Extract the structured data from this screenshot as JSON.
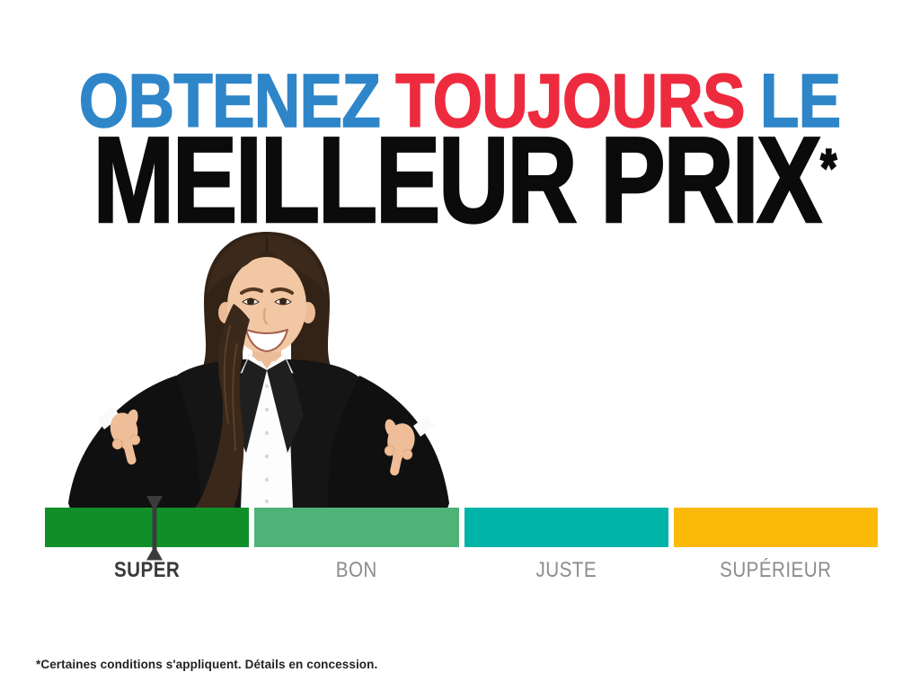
{
  "page": {
    "background": "#FFFFFF"
  },
  "headline": {
    "line1": [
      {
        "text": "OBTENEZ",
        "color": "#2E86C9"
      },
      {
        "text": "TOUJOURS",
        "color": "#EE2B3E"
      },
      {
        "text": "LE",
        "color": "#2E86C9"
      }
    ],
    "line2": {
      "text": "MEILLEUR PRIX",
      "color": "#0B0B0B"
    },
    "superscript": "*"
  },
  "gauge": {
    "segments": [
      {
        "label": "SUPER",
        "color": "#108F28",
        "label_color": "#3A3A3A",
        "active": true
      },
      {
        "label": "BON",
        "color": "#4FB377",
        "label_color": "#8D8D8D",
        "active": false
      },
      {
        "label": "JUSTE",
        "color": "#00B3A9",
        "label_color": "#8D8D8D",
        "active": false
      },
      {
        "label": "SUPÉRIEUR",
        "color": "#FBB90A",
        "label_color": "#8D8D8D",
        "active": false
      }
    ],
    "marker": {
      "points_to": "SUPER",
      "position_pct": 13.2,
      "color": "#3B3B3B"
    }
  },
  "disclaimer": {
    "text": "*Certaines conditions s'appliquent. Détails en concession."
  }
}
